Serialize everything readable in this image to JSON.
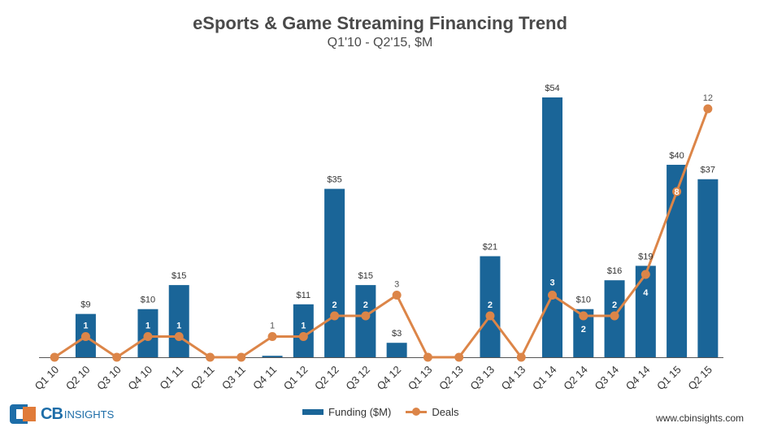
{
  "header": {
    "title": "eSports & Game Streaming Financing Trend",
    "subtitle": "Q1'10 - Q2'15, $M"
  },
  "legend": {
    "funding_label": "Funding ($M)",
    "deals_label": "Deals"
  },
  "branding": {
    "logo_cb": "CB",
    "logo_insights": "INSIGHTS",
    "website": "www.cbinsights.com"
  },
  "colors": {
    "bar": "#1a6598",
    "line": "#dc8548",
    "text": "#4a4a4a"
  },
  "chart_data": {
    "type": "bar",
    "categories": [
      "Q1 10",
      "Q2 10",
      "Q3 10",
      "Q4 10",
      "Q1 11",
      "Q2 11",
      "Q3 11",
      "Q4 11",
      "Q1 12",
      "Q2 12",
      "Q3 12",
      "Q4 12",
      "Q1 13",
      "Q2 13",
      "Q3 13",
      "Q4 13",
      "Q1 14",
      "Q2 14",
      "Q3 14",
      "Q4 14",
      "Q1 15",
      "Q2 15"
    ],
    "series": [
      {
        "name": "Funding ($M)",
        "type": "bar",
        "values": [
          0,
          9,
          0,
          10,
          15,
          0,
          0,
          0.3,
          11,
          35,
          15,
          3,
          0,
          0,
          21,
          0,
          54,
          10,
          16,
          19,
          40,
          37
        ],
        "labels": [
          "",
          "$9",
          "",
          "$10",
          "$15",
          "",
          "",
          "",
          "$11",
          "$35",
          "$15",
          "$3",
          "",
          "",
          "$21",
          "",
          "$54",
          "$10",
          "$16",
          "$19",
          "$40",
          "$37"
        ]
      },
      {
        "name": "Deals",
        "type": "line",
        "values": [
          0,
          1,
          0,
          1,
          1,
          0,
          0,
          1,
          1,
          2,
          2,
          3,
          0,
          0,
          2,
          0,
          3,
          2,
          2,
          4,
          8,
          12
        ],
        "labels": [
          "",
          "1",
          "",
          "1",
          "1",
          "",
          "",
          "1",
          "1",
          "2",
          "2",
          "3",
          "",
          "",
          "2",
          "",
          "3",
          "2",
          "2",
          "4",
          "8",
          "12"
        ]
      }
    ],
    "funding_ylim": [
      0,
      56
    ],
    "deals_ylim": [
      0,
      14
    ],
    "legend_position": "bottom"
  }
}
